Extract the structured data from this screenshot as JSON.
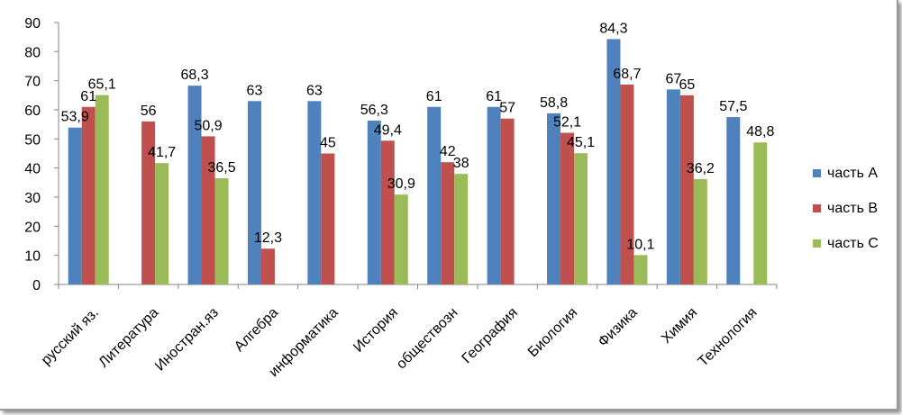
{
  "chart_data": {
    "type": "bar",
    "categories": [
      "русский яз.",
      "Литература",
      "Иностран.яз",
      "Алгебра",
      "информатика",
      "История",
      "обществозн",
      "География",
      "Биология",
      "Физика",
      "Химия",
      "Технология"
    ],
    "series": [
      {
        "name": "часть А",
        "color": "#4f81bd",
        "values": [
          53.9,
          null,
          68.3,
          63,
          63,
          56.3,
          61,
          61,
          58.8,
          84.3,
          67,
          57.5
        ],
        "labels": [
          "53,9",
          "",
          "68,3",
          "63",
          "63",
          "56,3",
          "61",
          "61",
          "58,8",
          "84,3",
          "67",
          "57,5"
        ]
      },
      {
        "name": "часть В",
        "color": "#c0504d",
        "values": [
          61,
          56,
          50.9,
          12.3,
          45,
          49.4,
          42,
          57,
          52.1,
          68.7,
          65,
          null
        ],
        "labels": [
          "61",
          "56",
          "50,9",
          "12,3",
          "45",
          "49,4",
          "42",
          "57",
          "52,1",
          "68,7",
          "65",
          ""
        ]
      },
      {
        "name": "часть С",
        "color": "#9bbb59",
        "values": [
          65.1,
          41.7,
          36.5,
          null,
          null,
          30.9,
          38,
          null,
          45.1,
          10.1,
          36.2,
          48.8
        ],
        "labels": [
          "65,1",
          "41,7",
          "36,5",
          "",
          "",
          "30,9",
          "38",
          "",
          "45,1",
          "10,1",
          "36,2",
          "48,8"
        ]
      }
    ],
    "ylim": [
      0,
      90
    ],
    "yticks": [
      "0",
      "10",
      "20",
      "30",
      "40",
      "50",
      "60",
      "70",
      "80",
      "90"
    ],
    "grid": false,
    "legend_position": "right",
    "title": "",
    "xlabel": "",
    "ylabel": ""
  }
}
